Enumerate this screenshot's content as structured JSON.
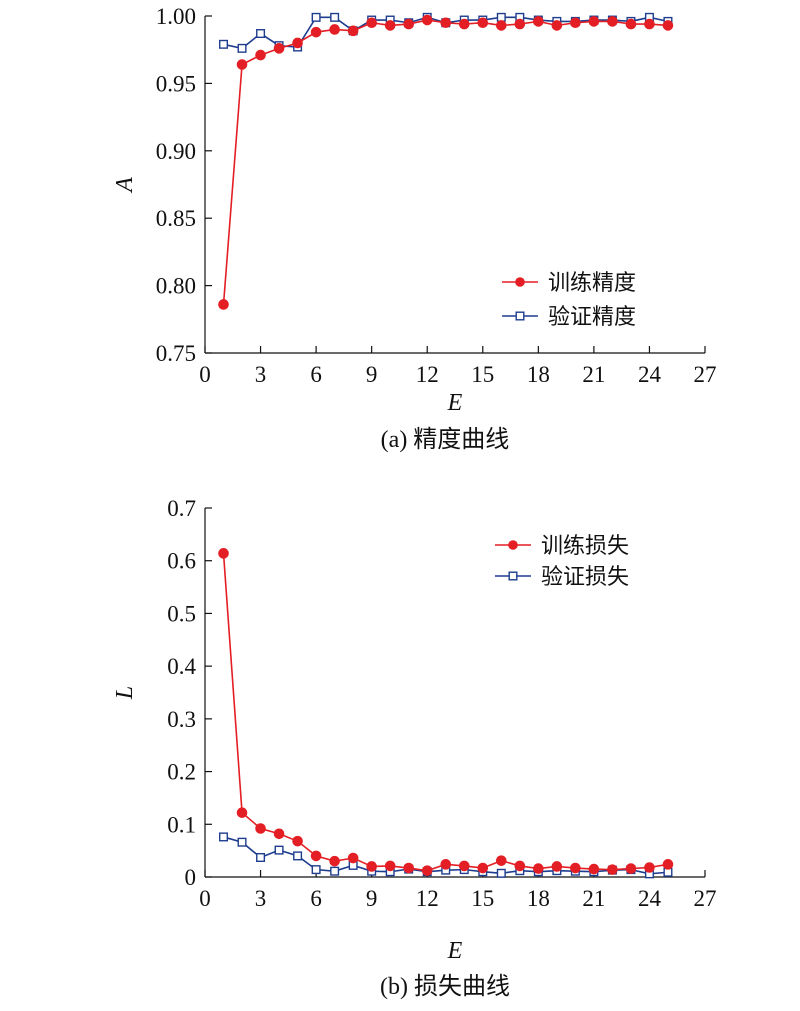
{
  "chart_data": [
    {
      "type": "line",
      "caption": "(a) 精度曲线",
      "xlabel": "E",
      "ylabel": "A",
      "xlim": [
        0,
        27
      ],
      "ylim": [
        0.75,
        1.0
      ],
      "xticks": [
        0,
        3,
        6,
        9,
        12,
        15,
        18,
        21,
        24,
        27
      ],
      "yticks": [
        0.75,
        0.8,
        0.85,
        0.9,
        0.95,
        1.0
      ],
      "ytick_labels": [
        "0.75",
        "0.80",
        "0.85",
        "0.90",
        "0.95",
        "1.00"
      ],
      "x": [
        1,
        2,
        3,
        4,
        5,
        6,
        7,
        8,
        9,
        10,
        11,
        12,
        13,
        14,
        15,
        16,
        17,
        18,
        19,
        20,
        21,
        22,
        23,
        24,
        25
      ],
      "legend_position": "center-right",
      "grid": false,
      "series": [
        {
          "name": "训练精度",
          "color": "#e31e24",
          "marker": "filled-circle",
          "values": [
            0.786,
            0.964,
            0.971,
            0.976,
            0.98,
            0.988,
            0.99,
            0.989,
            0.995,
            0.993,
            0.994,
            0.997,
            0.995,
            0.994,
            0.995,
            0.993,
            0.994,
            0.996,
            0.993,
            0.995,
            0.996,
            0.996,
            0.994,
            0.994,
            0.993
          ]
        },
        {
          "name": "验证精度",
          "color": "#1f3d8f",
          "marker": "open-square",
          "values": [
            0.979,
            0.976,
            0.987,
            0.978,
            0.977,
            0.999,
            0.999,
            0.989,
            0.997,
            0.997,
            0.995,
            0.999,
            0.995,
            0.997,
            0.997,
            0.999,
            0.999,
            0.997,
            0.996,
            0.996,
            0.997,
            0.997,
            0.996,
            0.999,
            0.996
          ]
        }
      ]
    },
    {
      "type": "line",
      "caption": "(b) 损失曲线",
      "xlabel": "E",
      "ylabel": "L",
      "xlim": [
        0,
        27
      ],
      "ylim": [
        0,
        0.7
      ],
      "xticks": [
        0,
        3,
        6,
        9,
        12,
        15,
        18,
        21,
        24,
        27
      ],
      "yticks": [
        0,
        0.1,
        0.2,
        0.3,
        0.4,
        0.5,
        0.6,
        0.7
      ],
      "ytick_labels": [
        "0",
        "0.1",
        "0.2",
        "0.3",
        "0.4",
        "0.5",
        "0.6",
        "0.7"
      ],
      "x": [
        1,
        2,
        3,
        4,
        5,
        6,
        7,
        8,
        9,
        10,
        11,
        12,
        13,
        14,
        15,
        16,
        17,
        18,
        19,
        20,
        21,
        22,
        23,
        24,
        25
      ],
      "legend_position": "top-right",
      "grid": false,
      "series": [
        {
          "name": "训练损失",
          "color": "#e31e24",
          "marker": "filled-circle",
          "values": [
            0.614,
            0.122,
            0.092,
            0.082,
            0.068,
            0.04,
            0.03,
            0.036,
            0.02,
            0.021,
            0.017,
            0.012,
            0.024,
            0.021,
            0.017,
            0.031,
            0.021,
            0.016,
            0.02,
            0.017,
            0.015,
            0.014,
            0.016,
            0.018,
            0.024
          ]
        },
        {
          "name": "验证损失",
          "color": "#1f3d8f",
          "marker": "open-square",
          "values": [
            0.076,
            0.066,
            0.037,
            0.051,
            0.04,
            0.014,
            0.011,
            0.022,
            0.011,
            0.01,
            0.015,
            0.01,
            0.013,
            0.014,
            0.01,
            0.007,
            0.012,
            0.01,
            0.012,
            0.011,
            0.01,
            0.013,
            0.014,
            0.006,
            0.009
          ]
        }
      ]
    }
  ]
}
